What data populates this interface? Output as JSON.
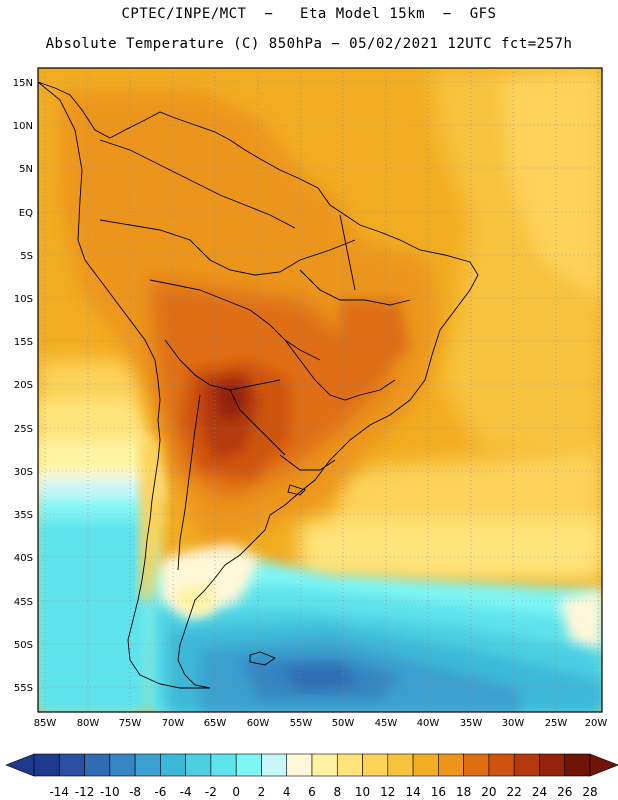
{
  "title_line1": "CPTEC/INPE/MCT  −   Eta Model 15km  −  GFS",
  "title_line2": "Absolute Temperature (C) 850hPa − 05/02/2021 12UTC fct=257h",
  "lat_labels": [
    "15N",
    "10N",
    "5N",
    "EQ",
    "5S",
    "10S",
    "15S",
    "20S",
    "25S",
    "30S",
    "35S",
    "40S",
    "45S",
    "50S",
    "55S"
  ],
  "lon_labels": [
    "85W",
    "80W",
    "75W",
    "70W",
    "65W",
    "60W",
    "55W",
    "50W",
    "45W",
    "40W",
    "35W",
    "30W",
    "25W",
    "20W"
  ],
  "colorbar": {
    "labels": [
      "-14",
      "-12",
      "-10",
      "-8",
      "-6",
      "-4",
      "-2",
      "0",
      "2",
      "4",
      "6",
      "8",
      "10",
      "12",
      "14",
      "16",
      "18",
      "20",
      "22",
      "24",
      "26",
      "28"
    ],
    "colors": [
      "#1f3a8c",
      "#2b4fa3",
      "#2f6cb4",
      "#3586c2",
      "#3aa0cf",
      "#3cb8d8",
      "#4ccfe2",
      "#5fe3ec",
      "#7ff6f6",
      "#c8f6f8",
      "#fff8d8",
      "#fff2a0",
      "#ffe47a",
      "#fdd35a",
      "#f7c23c",
      "#f2ad22",
      "#ec951a",
      "#df6e12",
      "#cf5410",
      "#b43a0d",
      "#93240b",
      "#6e1508"
    ]
  }
}
